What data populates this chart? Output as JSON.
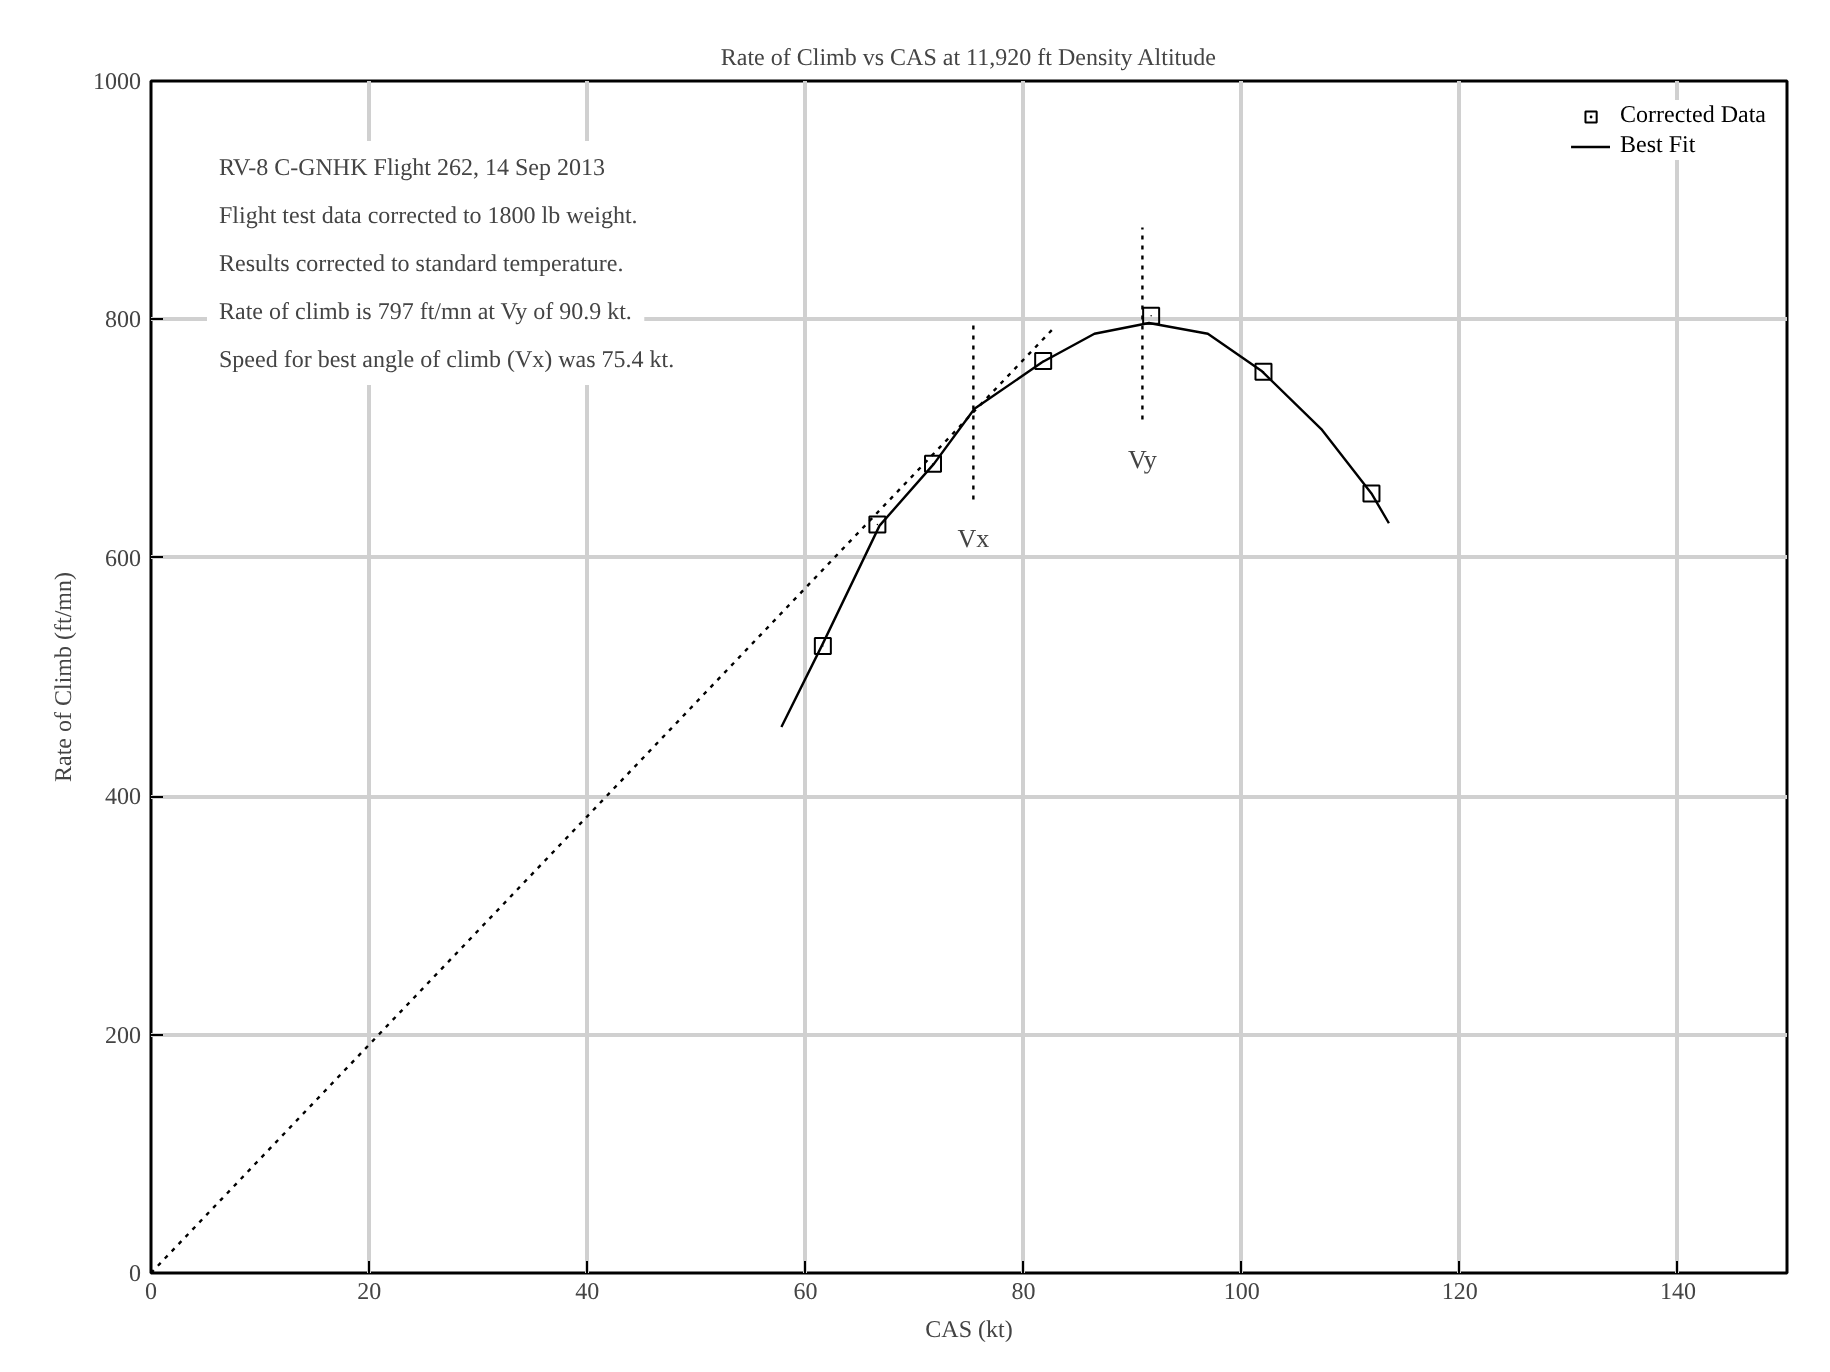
{
  "chart_data": {
    "type": "scatter",
    "title": "Rate of Climb vs CAS at 11,920 ft Density Altitude",
    "xlabel": "CAS (kt)",
    "ylabel": "Rate of Climb (ft/mn)",
    "xlim": [
      0,
      150
    ],
    "ylim": [
      0,
      1000
    ],
    "xticks": [
      0,
      20,
      40,
      60,
      80,
      100,
      120,
      140
    ],
    "yticks": [
      0,
      200,
      400,
      600,
      800,
      1000
    ],
    "grid": true,
    "legend": "top right",
    "annotations": [
      "RV-8 C-GNHK Flight 262, 14 Sep 2013",
      "Flight test data corrected to 1800 lb weight.",
      "Results corrected to standard temperature.",
      "Rate of climb is 797 ft/mn at Vy of 90.9 kt.",
      "Speed for best angle of climb (Vx) was 75.4 kt.",
      {
        "text": "Vx",
        "x": 75.4,
        "y": 649
      },
      {
        "text": "Vy",
        "x": 90.9,
        "y": 716
      }
    ],
    "series": [
      {
        "name": "Corrected Data",
        "marker": "square",
        "color": "#000000",
        "x": [
          61.6,
          66.6,
          71.7,
          81.8,
          91.7,
          102.0,
          111.9
        ],
        "values": [
          526,
          628,
          679,
          765,
          803,
          756,
          654
        ]
      },
      {
        "name": "Best Fit",
        "type": "line",
        "line_style": "solid",
        "color": "#000000",
        "x": [
          57.8,
          61.6,
          66.8,
          71.8,
          75.5,
          81.7,
          86.5,
          91.5,
          96.9,
          101.8,
          107.3,
          111.9,
          113.5
        ],
        "values": [
          458,
          528,
          627,
          679,
          725,
          764,
          788,
          797,
          788,
          757,
          708,
          654,
          629
        ]
      },
      {
        "type": "line",
        "line_style": "dotted",
        "color": "#000000",
        "x": [
          0,
          82.9
        ],
        "values": [
          0,
          794
        ]
      },
      {
        "type": "line",
        "line_style": "dotted",
        "color": "#000000",
        "x": [
          75.4,
          75.4
        ],
        "values": [
          649,
          795
        ]
      },
      {
        "type": "line",
        "line_style": "dotted",
        "color": "#000000",
        "x": [
          90.9,
          90.9
        ],
        "values": [
          716,
          877
        ]
      }
    ]
  }
}
